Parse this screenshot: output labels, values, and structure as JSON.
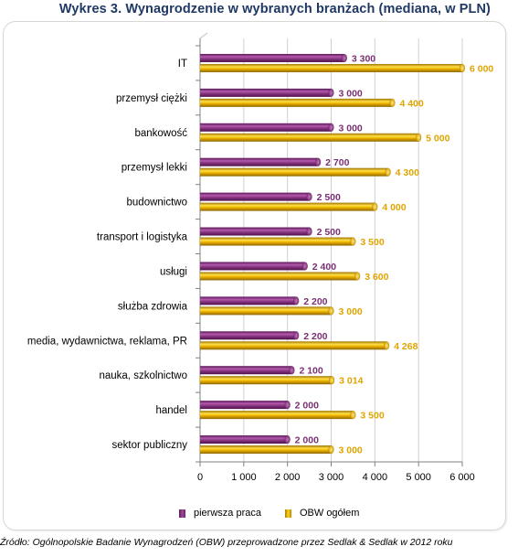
{
  "title": "Wykres 3. Wynagrodzenie w wybranych branżach (mediana, w PLN)",
  "source": "Źródło: Ogólnopolskie Badanie Wynagrodzeń (OBW) przeprowadzone przez Sedlak & Sedlak w 2012 roku",
  "legend": {
    "series1": "pierwsza praca",
    "series2": "OBW ogółem"
  },
  "colors": {
    "series1": "#8b3a84",
    "series2": "#f0b800",
    "label1": "#7a2f74",
    "label2": "#e0a400"
  },
  "chart_data": {
    "type": "bar",
    "orientation": "horizontal",
    "categories": [
      "IT",
      "przemysł ciężki",
      "bankowość",
      "przemysł lekki",
      "budownictwo",
      "transport i logistyka",
      "usługi",
      "służba zdrowia",
      "media, wydawnictwa,  reklama, PR",
      "nauka, szkolnictwo",
      "handel",
      "sektor publiczny"
    ],
    "series": [
      {
        "name": "pierwsza praca",
        "values": [
          3300,
          3000,
          3000,
          2700,
          2500,
          2500,
          2400,
          2200,
          2200,
          2100,
          2000,
          2000
        ],
        "labels": [
          "3 300",
          "3 000",
          "3 000",
          "2 700",
          "2 500",
          "2 500",
          "2 400",
          "2 200",
          "2 200",
          "2 100",
          "2 000",
          "2 000"
        ]
      },
      {
        "name": "OBW ogółem",
        "values": [
          6000,
          4400,
          5000,
          4300,
          4000,
          3500,
          3600,
          3000,
          4268,
          3014,
          3500,
          3000
        ],
        "labels": [
          "6 000",
          "4 400",
          "5 000",
          "4 300",
          "4 000",
          "3 500",
          "3 600",
          "3 000",
          "4 268",
          "3 014",
          "3 500",
          "3 000"
        ]
      }
    ],
    "xlim": [
      0,
      6000
    ],
    "xticks": [
      0,
      1000,
      2000,
      3000,
      4000,
      5000,
      6000
    ],
    "xtick_labels": [
      "0",
      "1 000",
      "2 000",
      "3 000",
      "4 000",
      "5 000",
      "6 000"
    ],
    "grid": true,
    "legend_position": "bottom"
  }
}
